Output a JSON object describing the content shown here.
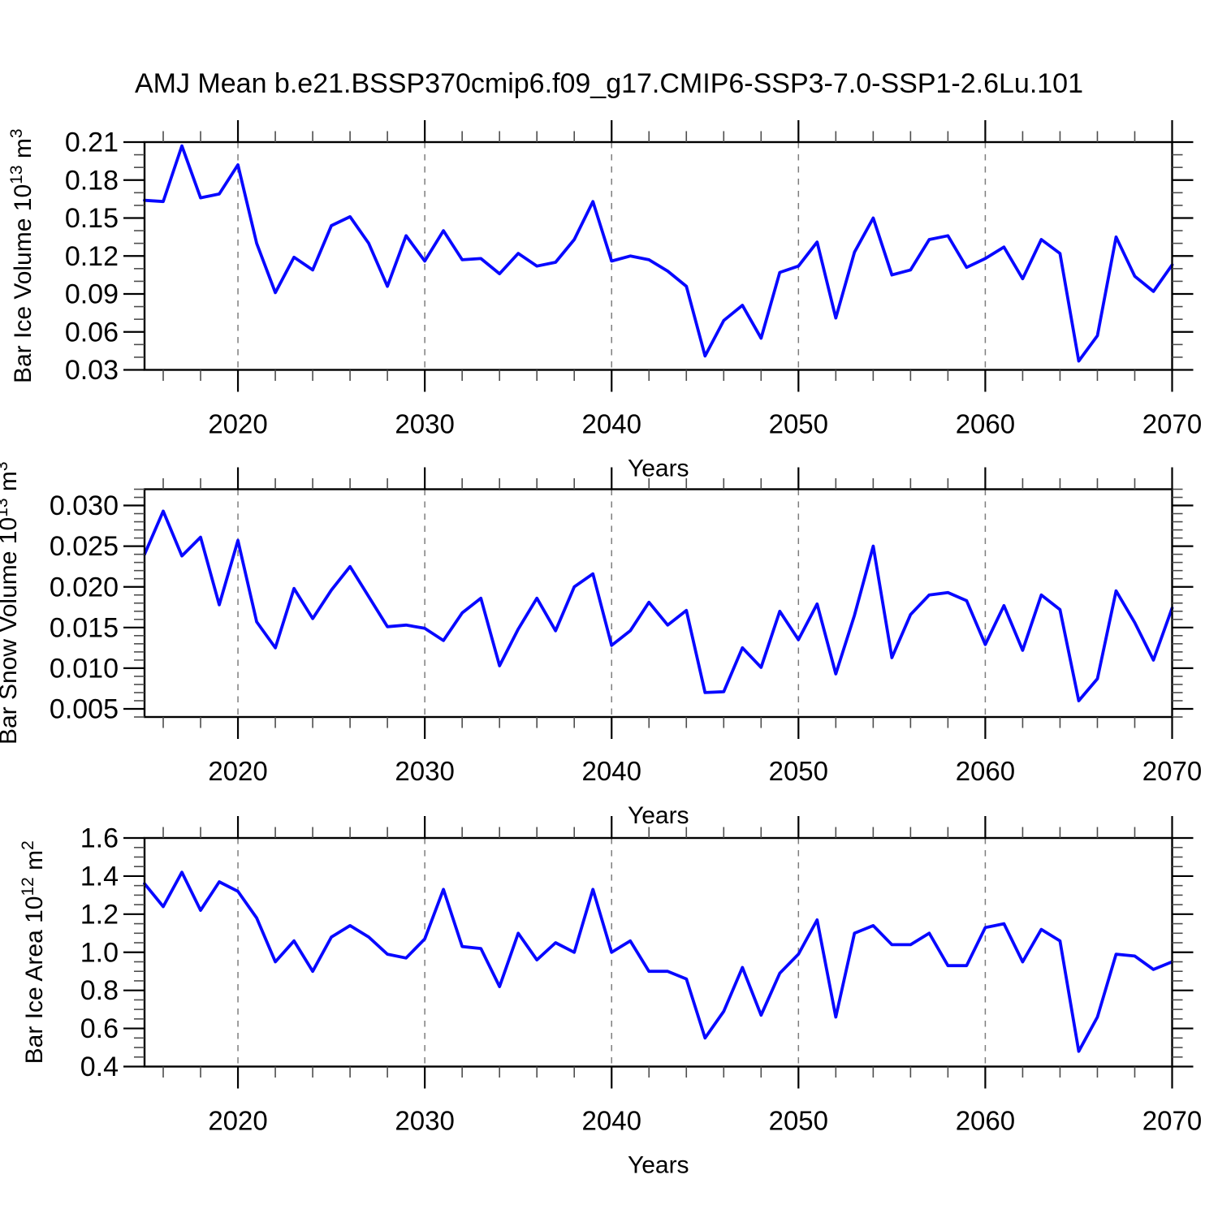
{
  "title": "AMJ Mean b.e21.BSSP370cmip6.f09_g17.CMIP6-SSP3-7.0-SSP1-2.6Lu.101",
  "xlabel": "Years",
  "colors": {
    "line": "#0808ff",
    "frame": "#000000",
    "major_tick": "#000000",
    "minor_tick": "#4d4d4d",
    "grid_dash": "#7d7d7d",
    "text": "#000000",
    "background": "#ffffff"
  },
  "years": [
    2015,
    2016,
    2017,
    2018,
    2019,
    2020,
    2021,
    2022,
    2023,
    2024,
    2025,
    2026,
    2027,
    2028,
    2029,
    2030,
    2031,
    2032,
    2033,
    2034,
    2035,
    2036,
    2037,
    2038,
    2039,
    2040,
    2041,
    2042,
    2043,
    2044,
    2045,
    2046,
    2047,
    2048,
    2049,
    2050,
    2051,
    2052,
    2053,
    2054,
    2055,
    2056,
    2057,
    2058,
    2059,
    2060,
    2061,
    2062,
    2063,
    2064,
    2065,
    2066,
    2067,
    2068,
    2069,
    2070
  ],
  "chart_data": [
    {
      "type": "line",
      "id": "bar-ice-volume",
      "ylabel": "Bar Ice Volume 10¹³ m³",
      "ylabel_parts": [
        {
          "t": "Bar Ice Volume 10"
        },
        {
          "t": "13",
          "sup": true
        },
        {
          "t": " m"
        },
        {
          "t": "3",
          "sup": true
        }
      ],
      "xlabel": "Years",
      "xlim": [
        2015,
        2070
      ],
      "ylim": [
        0.03,
        0.21
      ],
      "yticks": [
        0.03,
        0.06,
        0.09,
        0.12,
        0.15,
        0.18,
        0.21
      ],
      "ytick_decimals": 2,
      "yminor_step": 0.01,
      "xticks": [
        2020,
        2030,
        2040,
        2050,
        2060,
        2070
      ],
      "xminor_step": 2,
      "dashed_gridlines": [
        2020,
        2030,
        2040,
        2050,
        2060
      ],
      "grid": false,
      "legend": "none",
      "values": [
        0.164,
        0.163,
        0.207,
        0.166,
        0.169,
        0.192,
        0.13,
        0.091,
        0.119,
        0.109,
        0.144,
        0.151,
        0.13,
        0.096,
        0.136,
        0.116,
        0.14,
        0.117,
        0.118,
        0.106,
        0.122,
        0.112,
        0.115,
        0.133,
        0.163,
        0.116,
        0.12,
        0.117,
        0.108,
        0.096,
        0.041,
        0.069,
        0.081,
        0.055,
        0.107,
        0.112,
        0.131,
        0.071,
        0.123,
        0.15,
        0.105,
        0.109,
        0.133,
        0.136,
        0.111,
        0.118,
        0.127,
        0.102,
        0.133,
        0.122,
        0.037,
        0.057,
        0.135,
        0.104,
        0.092,
        0.113
      ]
    },
    {
      "type": "line",
      "id": "bar-snow-volume",
      "ylabel": "Bar Snow Volume 10¹³ m³",
      "ylabel_parts": [
        {
          "t": "Bar Snow Volume 10"
        },
        {
          "t": "13",
          "sup": true
        },
        {
          "t": " m"
        },
        {
          "t": "3",
          "sup": true
        }
      ],
      "xlabel": "Years",
      "xlim": [
        2015,
        2070
      ],
      "ylim": [
        0.004,
        0.032
      ],
      "yticks": [
        0.005,
        0.01,
        0.015,
        0.02,
        0.025,
        0.03
      ],
      "ytick_decimals": 3,
      "yminor_step": 0.001,
      "xticks": [
        2020,
        2030,
        2040,
        2050,
        2060,
        2070
      ],
      "xminor_step": 2,
      "dashed_gridlines": [
        2020,
        2030,
        2040,
        2050,
        2060
      ],
      "grid": false,
      "legend": "none",
      "values": [
        0.024,
        0.0293,
        0.0238,
        0.0261,
        0.0178,
        0.0257,
        0.0157,
        0.0125,
        0.0198,
        0.0161,
        0.0196,
        0.0225,
        0.0188,
        0.0151,
        0.0153,
        0.0149,
        0.0134,
        0.0168,
        0.0186,
        0.0103,
        0.0148,
        0.0186,
        0.0146,
        0.02,
        0.0216,
        0.0128,
        0.0146,
        0.0181,
        0.0153,
        0.0171,
        0.007,
        0.0071,
        0.0125,
        0.0101,
        0.017,
        0.0135,
        0.0179,
        0.0093,
        0.0165,
        0.025,
        0.0113,
        0.0166,
        0.019,
        0.0193,
        0.0183,
        0.0129,
        0.0177,
        0.0122,
        0.019,
        0.0172,
        0.006,
        0.0087,
        0.0195,
        0.0156,
        0.011,
        0.0174
      ]
    },
    {
      "type": "line",
      "id": "bar-ice-area",
      "ylabel": "Bar Ice Area 10¹² m²",
      "ylabel_parts": [
        {
          "t": "Bar Ice Area 10"
        },
        {
          "t": "12",
          "sup": true
        },
        {
          "t": " m"
        },
        {
          "t": "2",
          "sup": true
        }
      ],
      "xlabel": "Years",
      "xlim": [
        2015,
        2070
      ],
      "ylim": [
        0.4,
        1.6
      ],
      "yticks": [
        0.4,
        0.6,
        0.8,
        1.0,
        1.2,
        1.4,
        1.6
      ],
      "ytick_decimals": 1,
      "yminor_step": 0.05,
      "xticks": [
        2020,
        2030,
        2040,
        2050,
        2060,
        2070
      ],
      "xminor_step": 2,
      "dashed_gridlines": [
        2020,
        2030,
        2040,
        2050,
        2060
      ],
      "grid": false,
      "legend": "none",
      "values": [
        1.36,
        1.24,
        1.42,
        1.22,
        1.37,
        1.32,
        1.18,
        0.95,
        1.06,
        0.9,
        1.08,
        1.14,
        1.08,
        0.99,
        0.97,
        1.07,
        1.33,
        1.03,
        1.02,
        0.82,
        1.1,
        0.96,
        1.05,
        1.0,
        1.33,
        1.0,
        1.06,
        0.9,
        0.9,
        0.86,
        0.55,
        0.69,
        0.92,
        0.67,
        0.89,
        0.99,
        1.17,
        0.66,
        1.1,
        1.14,
        1.04,
        1.04,
        1.1,
        0.93,
        0.93,
        1.13,
        1.15,
        0.95,
        1.12,
        1.06,
        0.48,
        0.66,
        0.99,
        0.98,
        0.91,
        0.95
      ]
    }
  ]
}
